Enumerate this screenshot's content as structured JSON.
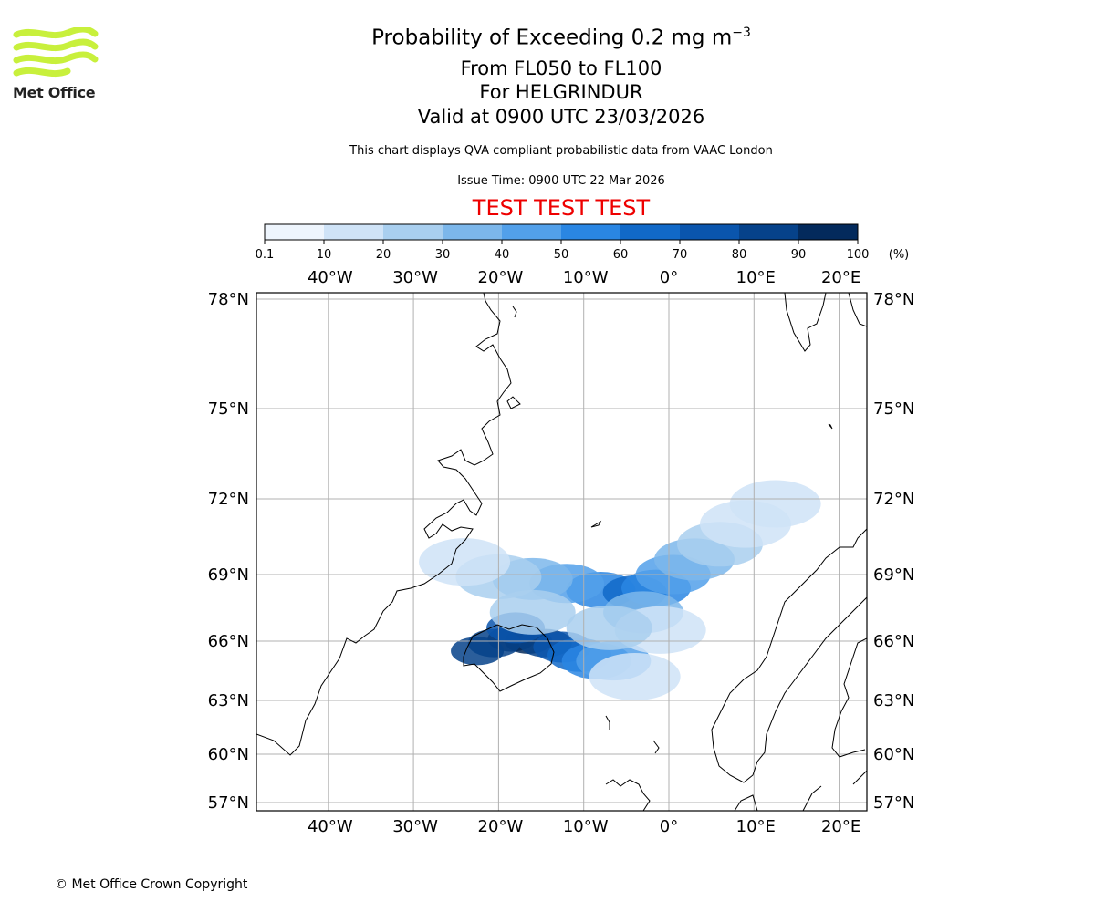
{
  "header": {
    "title_main": "Probability of Exceeding 0.2 mg m",
    "title_sup": "−3",
    "level_range": "From FL050 to FL100",
    "volcano": "For HELGRINDUR",
    "valid_time": "Valid at 0900 UTC 23/03/2026",
    "disclaimer": "This chart displays QVA compliant probabilistic data from VAAC London",
    "issue_time": "Issue Time: 0900 UTC 22 Mar 2026",
    "test_banner": "TEST TEST TEST"
  },
  "logo": {
    "text": "Met Office",
    "color": "#c8f03c"
  },
  "colorbar": {
    "labels": [
      "0.1",
      "10",
      "20",
      "30",
      "40",
      "50",
      "60",
      "70",
      "80",
      "90",
      "100"
    ],
    "unit": "(%)",
    "colors": [
      "#eef5fd",
      "#cfe3f7",
      "#a9cfef",
      "#7cb7eb",
      "#52a0ea",
      "#2a86e3",
      "#1169c8",
      "#0a55ad",
      "#06428a",
      "#032a5c"
    ]
  },
  "map": {
    "lon_labels": [
      "40°W",
      "30°W",
      "20°W",
      "10°W",
      "0°",
      "10°E",
      "20°E"
    ],
    "lat_labels": [
      "78°N",
      "75°N",
      "72°N",
      "69°N",
      "66°N",
      "63°N",
      "60°N",
      "57°N"
    ],
    "plume": [
      {
        "lon": -18.5,
        "lat": 66.1,
        "level": 9
      },
      {
        "lon": -16.5,
        "lat": 66.0,
        "level": 9
      },
      {
        "lon": -20.5,
        "lat": 65.9,
        "level": 8
      },
      {
        "lon": -14.5,
        "lat": 65.9,
        "level": 8
      },
      {
        "lon": -22.5,
        "lat": 65.5,
        "level": 8
      },
      {
        "lon": -12.5,
        "lat": 65.7,
        "level": 7
      },
      {
        "lon": -18.0,
        "lat": 66.6,
        "level": 7
      },
      {
        "lon": -10.5,
        "lat": 65.3,
        "level": 6
      },
      {
        "lon": -8.5,
        "lat": 65.0,
        "level": 5
      },
      {
        "lon": -6.5,
        "lat": 65.0,
        "level": 4
      },
      {
        "lon": -8.0,
        "lat": 68.3,
        "level": 5
      },
      {
        "lon": -4.0,
        "lat": 68.2,
        "level": 6
      },
      {
        "lon": -1.5,
        "lat": 68.4,
        "level": 5
      },
      {
        "lon": -12.0,
        "lat": 68.6,
        "level": 4
      },
      {
        "lon": -16.0,
        "lat": 68.8,
        "level": 3
      },
      {
        "lon": 0.5,
        "lat": 69.0,
        "level": 4
      },
      {
        "lon": -3.0,
        "lat": 67.3,
        "level": 3
      },
      {
        "lon": -20.0,
        "lat": 68.9,
        "level": 2
      },
      {
        "lon": 3.0,
        "lat": 69.6,
        "level": 3
      },
      {
        "lon": 6.0,
        "lat": 70.2,
        "level": 2
      },
      {
        "lon": 9.0,
        "lat": 71.0,
        "level": 1
      },
      {
        "lon": 12.5,
        "lat": 71.8,
        "level": 1
      },
      {
        "lon": -4.0,
        "lat": 64.2,
        "level": 1
      },
      {
        "lon": -24.0,
        "lat": 69.5,
        "level": 1
      },
      {
        "lon": -16.0,
        "lat": 67.3,
        "level": 2
      },
      {
        "lon": -1.0,
        "lat": 66.5,
        "level": 1
      },
      {
        "lon": -7.0,
        "lat": 66.6,
        "level": 2
      }
    ]
  },
  "footer": {
    "copyright": "© Met Office Crown Copyright"
  }
}
